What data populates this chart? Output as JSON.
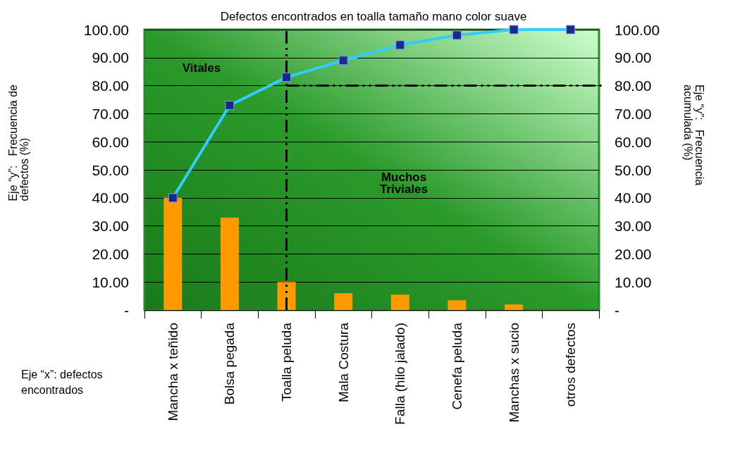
{
  "chart_data": {
    "type": "bar",
    "title": "Defectos encontrados en toalla tamaño mano color suave",
    "xlabel": "Eje “x”: defectos encontrados",
    "ylabel": "Eje “y”:   Frecuencia de defectos (%)",
    "y2label": "Eje “y”:   Frecuencia acumulada (%)",
    "categories": [
      "Mancha x teñido",
      "Bolsa pegada",
      "Toalla peluda",
      "Mala Costura",
      "Falla (hilo jalado)",
      "Cenefa peluda",
      "Manchas x sucio",
      "otros defectos"
    ],
    "series": [
      {
        "color": "#ff9900",
        "values": [
          40,
          33,
          10,
          6,
          5.5,
          3.5,
          2,
          0
        ]
      },
      {
        "type": "line",
        "axis": "y2",
        "color": "#33ccff",
        "marker": "square",
        "values": [
          40,
          73,
          83,
          89,
          94.5,
          98,
          100,
          100
        ]
      }
    ],
    "ylim": [
      0,
      100
    ],
    "yticks": [
      {
        "value": 0,
        "label": "-"
      },
      {
        "value": 10,
        "label": "10.00"
      },
      {
        "value": 20,
        "label": "20.00"
      },
      {
        "value": 30,
        "label": "30.00"
      },
      {
        "value": 40,
        "label": "40.00"
      },
      {
        "value": 50,
        "label": "50.00"
      },
      {
        "value": 60,
        "label": "60.00"
      },
      {
        "value": 70,
        "label": "70.00"
      },
      {
        "value": 80,
        "label": "80.00"
      },
      {
        "value": 90,
        "label": "90.00"
      },
      {
        "value": 100,
        "label": "100.00"
      }
    ],
    "y2lim": [
      0,
      100
    ],
    "y2ticks": [
      {
        "value": 0,
        "label": "-"
      },
      {
        "value": 10,
        "label": "10.00"
      },
      {
        "value": 20,
        "label": "20.00"
      },
      {
        "value": 30,
        "label": "30.00"
      },
      {
        "value": 40,
        "label": "40.00"
      },
      {
        "value": 50,
        "label": "50.00"
      },
      {
        "value": 60,
        "label": "60.00"
      },
      {
        "value": 70,
        "label": "70.00"
      },
      {
        "value": 80,
        "label": "80.00"
      },
      {
        "value": 90,
        "label": "90.00"
      },
      {
        "value": 100,
        "label": "100.00"
      }
    ],
    "ref_lines": [
      {
        "axis": "y2",
        "value": 80,
        "line_style": "dashed"
      },
      {
        "axis": "x",
        "value": "Toalla peluda",
        "line_style": "dashed"
      }
    ],
    "annotations": [
      "Vitales",
      "Muchos Triviales"
    ],
    "grid": "y"
  }
}
